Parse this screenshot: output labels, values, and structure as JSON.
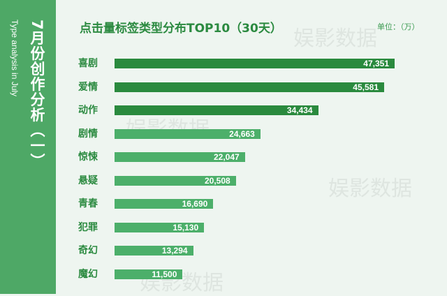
{
  "sidebar": {
    "title": "7月份创作分析（一）",
    "subtitle": "Type analysis in July"
  },
  "watermark": "娱影数据",
  "colors": {
    "sidebar": "#4ea866",
    "bar_top": "#2a8a3e",
    "bar_rest": "#4caf6a",
    "background": "#eef5f0"
  },
  "chart_data": {
    "type": "bar",
    "orientation": "horizontal",
    "title": "点击量标签类型分布TOP10（30天）",
    "unit": "单位：（万）",
    "categories": [
      "喜剧",
      "爱情",
      "动作",
      "剧情",
      "惊悚",
      "悬疑",
      "青春",
      "犯罪",
      "奇幻",
      "魔幻"
    ],
    "values": [
      47351,
      45581,
      34434,
      24663,
      22047,
      20508,
      16690,
      15130,
      13294,
      11500
    ],
    "value_labels": [
      "47,351",
      "45,581",
      "34,434",
      "24,663",
      "22,047",
      "20,508",
      "16,690",
      "15,130",
      "13,294",
      "11,500"
    ],
    "grid": false
  }
}
